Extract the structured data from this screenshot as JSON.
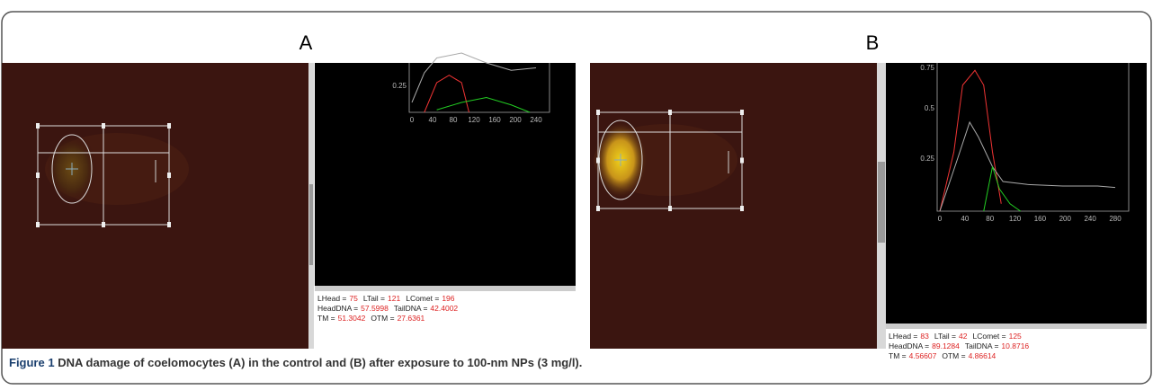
{
  "panels": [
    {
      "label": "A",
      "plot": {
        "xticks": [
          "0",
          "40",
          "80",
          "120",
          "160",
          "200",
          "240"
        ],
        "yticks": [
          "0.25"
        ]
      },
      "measurements": [
        [
          {
            "label": "LHead =",
            "value": "75"
          },
          {
            "label": "LTail =",
            "value": "121"
          },
          {
            "label": "LComet =",
            "value": "196"
          }
        ],
        [
          {
            "label": "HeadDNA =",
            "value": "57.5998"
          },
          {
            "label": "TailDNA =",
            "value": "42.4002"
          }
        ],
        [
          {
            "label": "TM =",
            "value": "51.3042"
          },
          {
            "label": "OTM =",
            "value": "27.6361"
          }
        ]
      ]
    },
    {
      "label": "B",
      "plot": {
        "xticks": [
          "0",
          "40",
          "80",
          "120",
          "160",
          "200",
          "240",
          "280"
        ],
        "yticks": [
          "0.75",
          "0.5",
          "0.25"
        ]
      },
      "measurements": [
        [
          {
            "label": "LHead =",
            "value": "83"
          },
          {
            "label": "LTail =",
            "value": "42"
          },
          {
            "label": "LComet =",
            "value": "125"
          }
        ],
        [
          {
            "label": "HeadDNA =",
            "value": "89.1284"
          },
          {
            "label": "TailDNA =",
            "value": "10.8716"
          }
        ],
        [
          {
            "label": "TM =",
            "value": "4.56607"
          },
          {
            "label": "OTM =",
            "value": "4.86614"
          }
        ]
      ]
    }
  ],
  "caption": {
    "label": "Figure 1",
    "text": "DNA damage of coelomocytes (A) in the control and (B) after exposure to 100-nm NPs (3 mg/l)."
  }
}
